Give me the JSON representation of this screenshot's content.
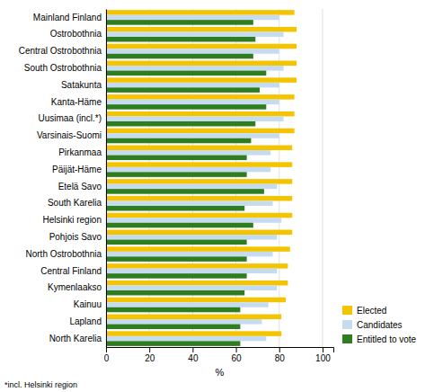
{
  "chart_data": {
    "type": "bar",
    "orientation": "horizontal",
    "categories": [
      "Mainland Finland",
      "Ostrobothnia",
      "Central Ostrobothnia",
      "South Ostrobothnia",
      "Satakunta",
      "Kanta-Häme",
      "Uusimaa (incl.*)",
      "Varsinais-Suomi",
      "Pirkanmaa",
      "Päijät-Häme",
      "Etelä Savo",
      "South Karelia",
      "Helsinki region",
      "Pohjois Savo",
      "North Ostrobothnia",
      "Central Finland",
      "Kymenlaakso",
      "Kainuu",
      "Lapland",
      "North Karelia"
    ],
    "series": [
      {
        "name": "Elected",
        "color": "#F5C400",
        "values": [
          87,
          88,
          88,
          88,
          88,
          87,
          87,
          87,
          86,
          86,
          86,
          86,
          86,
          86,
          85,
          84,
          84,
          83,
          81,
          81
        ]
      },
      {
        "name": "Candidates",
        "color": "#C5DCF0",
        "values": [
          80,
          82,
          80,
          82,
          80,
          80,
          82,
          80,
          76,
          76,
          79,
          77,
          81,
          79,
          77,
          79,
          79,
          75,
          72,
          74
        ]
      },
      {
        "name": "Entitled to vote",
        "color": "#2E7D1F",
        "values": [
          68,
          69,
          68,
          74,
          71,
          74,
          69,
          67,
          65,
          65,
          73,
          64,
          68,
          65,
          65,
          65,
          64,
          62,
          62,
          62
        ]
      }
    ],
    "xlabel": "%",
    "xlim": [
      0,
      105
    ],
    "xticks": [
      0,
      20,
      40,
      60,
      80,
      100
    ],
    "grid": true,
    "legend": "lower right",
    "annotations": [
      "*incl. Helsinki region"
    ]
  }
}
